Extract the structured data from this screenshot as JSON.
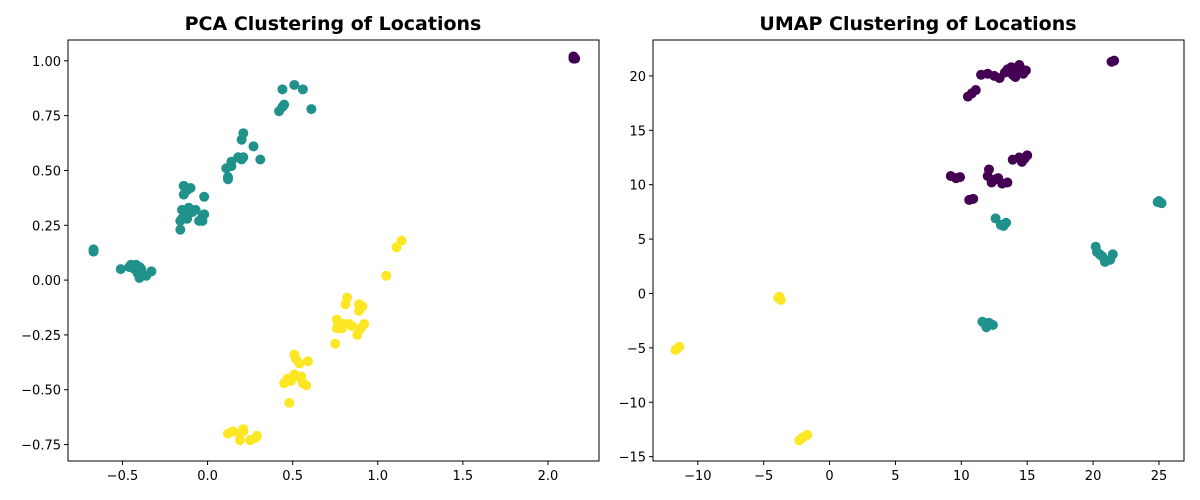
{
  "colors": {
    "purple": "#440154",
    "teal": "#21918c",
    "yellow": "#fde725"
  },
  "chart_data": [
    {
      "type": "scatter",
      "title": "PCA Clustering of Locations",
      "xlabel": "",
      "ylabel": "",
      "xlim": [
        -0.82,
        2.3
      ],
      "ylim": [
        -0.825,
        1.095
      ],
      "xticks": [
        -0.5,
        0.0,
        0.5,
        1.0,
        1.5,
        2.0
      ],
      "xtick_labels": [
        "−0.5",
        "0.0",
        "0.5",
        "1.0",
        "1.5",
        "2.0"
      ],
      "yticks": [
        -0.75,
        -0.5,
        -0.25,
        0.0,
        0.25,
        0.5,
        0.75,
        1.0
      ],
      "ytick_labels": [
        "−0.75",
        "−0.50",
        "−0.25",
        "0.00",
        "0.25",
        "0.50",
        "0.75",
        "1.00"
      ],
      "grid": false,
      "series": [
        {
          "color": "#440154",
          "points": [
            [
              2.15,
              1.01
            ],
            [
              2.15,
              1.02
            ],
            [
              2.16,
              1.01
            ]
          ]
        },
        {
          "color": "#21918c",
          "points": [
            [
              -0.67,
              0.14
            ],
            [
              -0.67,
              0.13
            ],
            [
              -0.51,
              0.05
            ],
            [
              -0.46,
              0.06
            ],
            [
              -0.45,
              0.07
            ],
            [
              -0.44,
              0.06
            ],
            [
              -0.43,
              0.05
            ],
            [
              -0.42,
              0.07
            ],
            [
              -0.41,
              0.03
            ],
            [
              -0.4,
              0.01
            ],
            [
              -0.4,
              0.06
            ],
            [
              -0.39,
              0.05
            ],
            [
              -0.36,
              0.02
            ],
            [
              -0.33,
              0.04
            ],
            [
              -0.16,
              0.23
            ],
            [
              -0.16,
              0.27
            ],
            [
              -0.15,
              0.28
            ],
            [
              -0.15,
              0.32
            ],
            [
              -0.13,
              0.3
            ],
            [
              -0.12,
              0.28
            ],
            [
              -0.14,
              0.39
            ],
            [
              -0.14,
              0.43
            ],
            [
              -0.12,
              0.41
            ],
            [
              -0.1,
              0.42
            ],
            [
              -0.11,
              0.33
            ],
            [
              -0.09,
              0.31
            ],
            [
              -0.07,
              0.32
            ],
            [
              -0.05,
              0.27
            ],
            [
              -0.03,
              0.27
            ],
            [
              -0.03,
              0.29
            ],
            [
              -0.02,
              0.3
            ],
            [
              -0.02,
              0.38
            ],
            [
              0.11,
              0.51
            ],
            [
              0.12,
              0.47
            ],
            [
              0.12,
              0.46
            ],
            [
              0.14,
              0.52
            ],
            [
              0.14,
              0.54
            ],
            [
              0.18,
              0.56
            ],
            [
              0.2,
              0.55
            ],
            [
              0.21,
              0.56
            ],
            [
              0.2,
              0.64
            ],
            [
              0.21,
              0.67
            ],
            [
              0.27,
              0.61
            ],
            [
              0.31,
              0.55
            ],
            [
              0.42,
              0.77
            ],
            [
              0.44,
              0.79
            ],
            [
              0.45,
              0.8
            ],
            [
              0.44,
              0.87
            ],
            [
              0.51,
              0.89
            ],
            [
              0.56,
              0.87
            ],
            [
              0.61,
              0.78
            ]
          ]
        },
        {
          "color": "#fde725",
          "points": [
            [
              0.12,
              -0.7
            ],
            [
              0.15,
              -0.69
            ],
            [
              0.19,
              -0.7
            ],
            [
              0.19,
              -0.73
            ],
            [
              0.21,
              -0.69
            ],
            [
              0.21,
              -0.68
            ],
            [
              0.25,
              -0.73
            ],
            [
              0.28,
              -0.72
            ],
            [
              0.29,
              -0.71
            ],
            [
              0.45,
              -0.47
            ],
            [
              0.47,
              -0.45
            ],
            [
              0.48,
              -0.56
            ],
            [
              0.49,
              -0.46
            ],
            [
              0.51,
              -0.43
            ],
            [
              0.51,
              -0.34
            ],
            [
              0.52,
              -0.36
            ],
            [
              0.53,
              -0.44
            ],
            [
              0.54,
              -0.38
            ],
            [
              0.55,
              -0.44
            ],
            [
              0.56,
              -0.47
            ],
            [
              0.58,
              -0.48
            ],
            [
              0.59,
              -0.37
            ],
            [
              0.75,
              -0.29
            ],
            [
              0.76,
              -0.22
            ],
            [
              0.76,
              -0.18
            ],
            [
              0.77,
              -0.2
            ],
            [
              0.79,
              -0.22
            ],
            [
              0.8,
              -0.2
            ],
            [
              0.81,
              -0.11
            ],
            [
              0.82,
              -0.08
            ],
            [
              0.83,
              -0.2
            ],
            [
              0.85,
              -0.21
            ],
            [
              0.88,
              -0.25
            ],
            [
              0.89,
              -0.11
            ],
            [
              0.89,
              -0.14
            ],
            [
              0.9,
              -0.22
            ],
            [
              0.91,
              -0.12
            ],
            [
              0.92,
              -0.2
            ],
            [
              1.05,
              0.02
            ],
            [
              1.11,
              0.15
            ],
            [
              1.14,
              0.18
            ]
          ]
        }
      ]
    },
    {
      "type": "scatter",
      "title": "UMAP Clustering of Locations",
      "xlabel": "",
      "ylabel": "",
      "xlim": [
        -13.4,
        26.9
      ],
      "ylim": [
        -15.4,
        23.3
      ],
      "xticks": [
        -10,
        -5,
        0,
        5,
        10,
        15,
        20,
        25
      ],
      "xtick_labels": [
        "−10",
        "−5",
        "0",
        "5",
        "10",
        "15",
        "20",
        "25"
      ],
      "yticks": [
        -15,
        -10,
        -5,
        0,
        5,
        10,
        15,
        20
      ],
      "ytick_labels": [
        "−15",
        "−10",
        "−5",
        "0",
        "5",
        "10",
        "15",
        "20"
      ],
      "grid": false,
      "series": [
        {
          "color": "#440154",
          "points": [
            [
              10.5,
              18.1
            ],
            [
              10.8,
              18.4
            ],
            [
              11.1,
              18.7
            ],
            [
              11.5,
              20.1
            ],
            [
              12.0,
              20.2
            ],
            [
              12.5,
              20.0
            ],
            [
              12.9,
              19.8
            ],
            [
              13.3,
              20.3
            ],
            [
              13.5,
              20.6
            ],
            [
              13.8,
              20.8
            ],
            [
              14.2,
              20.4
            ],
            [
              14.5,
              20.7
            ],
            [
              14.7,
              20.2
            ],
            [
              14.1,
              19.9
            ],
            [
              14.9,
              20.5
            ],
            [
              13.9,
              20.1
            ],
            [
              14.4,
              21.0
            ],
            [
              9.2,
              10.8
            ],
            [
              9.6,
              10.6
            ],
            [
              9.9,
              10.7
            ],
            [
              12.0,
              10.8
            ],
            [
              12.3,
              10.2
            ],
            [
              12.6,
              10.5
            ],
            [
              12.1,
              11.4
            ],
            [
              12.8,
              10.6
            ],
            [
              13.1,
              10.1
            ],
            [
              13.5,
              10.2
            ],
            [
              13.9,
              12.3
            ],
            [
              14.4,
              12.5
            ],
            [
              14.8,
              12.4
            ],
            [
              15.0,
              12.7
            ],
            [
              14.6,
              12.1
            ],
            [
              10.6,
              8.6
            ],
            [
              10.9,
              8.7
            ],
            [
              21.4,
              21.3
            ],
            [
              21.6,
              21.4
            ]
          ]
        },
        {
          "color": "#21918c",
          "points": [
            [
              12.6,
              6.9
            ],
            [
              13.0,
              6.3
            ],
            [
              13.4,
              6.5
            ],
            [
              13.2,
              6.2
            ],
            [
              20.2,
              4.3
            ],
            [
              20.3,
              3.8
            ],
            [
              20.7,
              3.4
            ],
            [
              20.9,
              2.9
            ],
            [
              21.3,
              3.1
            ],
            [
              21.5,
              3.6
            ],
            [
              20.5,
              3.6
            ],
            [
              25.0,
              8.5
            ],
            [
              25.2,
              8.3
            ],
            [
              24.9,
              8.4
            ],
            [
              11.6,
              -2.6
            ],
            [
              11.9,
              -3.1
            ],
            [
              12.1,
              -2.7
            ],
            [
              12.4,
              -2.9
            ],
            [
              12.0,
              -2.8
            ]
          ]
        },
        {
          "color": "#fde725",
          "points": [
            [
              -11.7,
              -5.2
            ],
            [
              -11.4,
              -4.9
            ],
            [
              -11.5,
              -5.0
            ],
            [
              -3.8,
              -0.3
            ],
            [
              -3.7,
              -0.6
            ],
            [
              -3.9,
              -0.4
            ],
            [
              -2.3,
              -13.5
            ],
            [
              -2.0,
              -13.2
            ],
            [
              -1.7,
              -13.0
            ],
            [
              -2.2,
              -13.4
            ]
          ]
        }
      ]
    }
  ]
}
